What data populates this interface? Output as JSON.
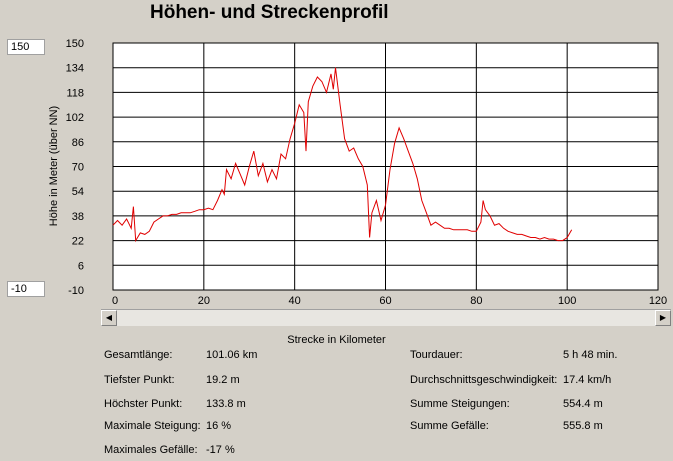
{
  "title": "Höhen- und Streckenprofil",
  "inputs": {
    "max": "150",
    "min": "-10"
  },
  "chart_data": {
    "type": "line",
    "title": "Höhen- und Streckenprofil",
    "xlabel": "Strecke in Kilometer",
    "ylabel": "Höhe in Meter (über NN)",
    "xlim": [
      0,
      120
    ],
    "ylim": [
      -10,
      150
    ],
    "xticks": [
      "0",
      "20",
      "40",
      "60",
      "80",
      "100",
      "120"
    ],
    "yticks": [
      "150",
      "134",
      "118",
      "102",
      "86",
      "70",
      "54",
      "38",
      "22",
      "6",
      "-10"
    ],
    "grid": true,
    "line_color": "#e00000",
    "series": [
      {
        "x": [
          0,
          1,
          2,
          3,
          4,
          4.5,
          5,
          6,
          7,
          8,
          9,
          10,
          11,
          12,
          13,
          14,
          15,
          16,
          17,
          18,
          19,
          20,
          21,
          22,
          23,
          24,
          24.5,
          25,
          26,
          27,
          28,
          29,
          30,
          31,
          32,
          33,
          34,
          35,
          36,
          37,
          38,
          39,
          40,
          41,
          42,
          42.5,
          43,
          44,
          45,
          46,
          47,
          48,
          48.5,
          49,
          50,
          51,
          52,
          53,
          54,
          55,
          56,
          56.5,
          57,
          58,
          59,
          60,
          61,
          62,
          63,
          64,
          65,
          66,
          67,
          68,
          69,
          70,
          71,
          72,
          73,
          74,
          75,
          76,
          77,
          78,
          79,
          80,
          81,
          81.5,
          82,
          83,
          84,
          85,
          86,
          87,
          88,
          89,
          90,
          91,
          92,
          93,
          94,
          95,
          96,
          97,
          98,
          99,
          100,
          101
        ],
        "y": [
          32,
          35,
          32,
          36,
          30,
          44,
          22,
          27,
          26,
          28,
          34,
          36,
          38,
          38,
          39,
          39,
          40,
          40,
          40,
          41,
          42,
          42,
          43,
          42,
          48,
          55,
          52,
          68,
          62,
          72,
          65,
          58,
          70,
          80,
          64,
          72,
          60,
          68,
          62,
          78,
          75,
          88,
          98,
          110,
          105,
          80,
          112,
          122,
          128,
          125,
          118,
          130,
          120,
          134,
          110,
          88,
          80,
          82,
          75,
          70,
          58,
          24,
          40,
          48,
          35,
          45,
          68,
          85,
          95,
          88,
          80,
          72,
          62,
          48,
          40,
          32,
          34,
          32,
          30,
          30,
          29,
          29,
          29,
          29,
          28,
          28,
          34,
          48,
          42,
          38,
          32,
          33,
          30,
          28,
          27,
          26,
          26,
          25,
          24,
          24,
          23,
          24,
          23,
          23,
          22,
          22,
          24,
          29
        ]
      }
    ]
  },
  "stats": {
    "left": [
      {
        "label": "Gesamtlänge:",
        "value": "101.06 km"
      },
      {
        "label": "Tiefster Punkt:",
        "value": "19.2 m"
      },
      {
        "label": "Höchster Punkt:",
        "value": "133.8 m"
      },
      {
        "label": "Maximale Steigung:",
        "value": "16 %"
      },
      {
        "label": "Maximales Gefälle:",
        "value": "-17 %"
      }
    ],
    "right": [
      {
        "label": "Tourdauer:",
        "value": "5 h 48 min."
      },
      {
        "label": "Durchschnittsgeschwindigkeit:",
        "value": "17.4 km/h"
      },
      {
        "label": "Summe Steigungen:",
        "value": "554.4 m"
      },
      {
        "label": "Summe Gefälle:",
        "value": "555.8 m"
      }
    ]
  },
  "scrollbar": {
    "left_icon": "arrow-left-icon",
    "right_icon": "arrow-right-icon"
  }
}
